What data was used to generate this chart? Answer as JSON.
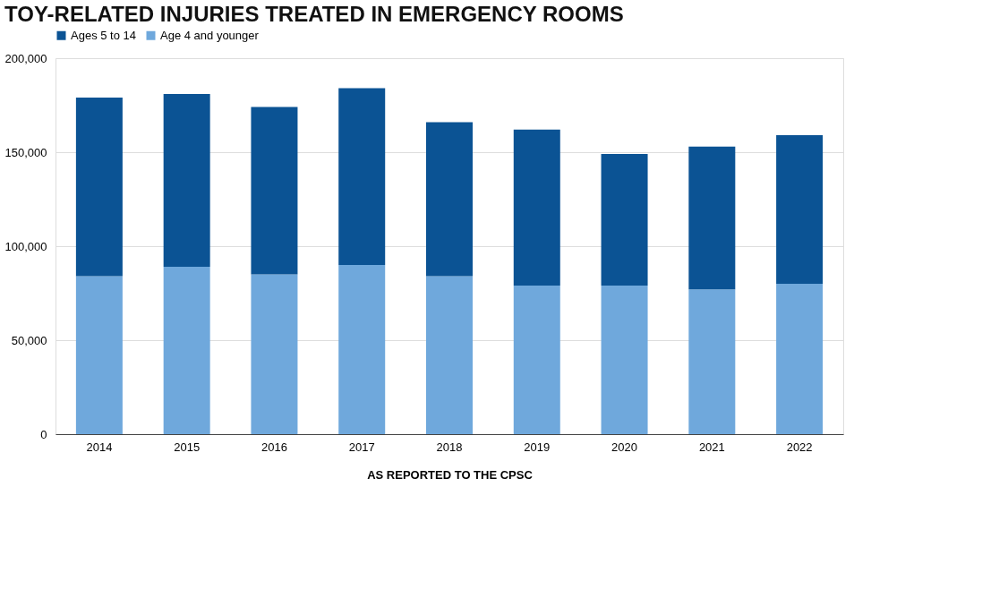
{
  "chart_data": {
    "type": "bar",
    "title": "TOY-RELATED INJURIES TREATED IN EMERGENCY ROOMS",
    "xlabel": "AS REPORTED TO THE CPSC",
    "categories": [
      "2014",
      "2015",
      "2016",
      "2017",
      "2018",
      "2019",
      "2020",
      "2021",
      "2022"
    ],
    "series": [
      {
        "name": "Age 4 and younger",
        "color": "#6fa8dc",
        "values": [
          84000,
          89000,
          85000,
          90000,
          84000,
          79000,
          79000,
          77000,
          80000
        ]
      },
      {
        "name": "Ages 5 to 14",
        "color": "#0b5394",
        "values": [
          95000,
          92000,
          89000,
          94000,
          82000,
          83000,
          70000,
          76000,
          79000
        ]
      }
    ],
    "stacked": true,
    "ylim": [
      0,
      200000
    ],
    "yticks": [
      0,
      {
        "value": 50000,
        "label": "50,000"
      },
      {
        "value": 100000,
        "label": "100,000"
      },
      {
        "value": 150000,
        "label": "150,000"
      },
      {
        "value": 200000,
        "label": "200,000"
      }
    ],
    "grid": "y",
    "legend": "top"
  }
}
